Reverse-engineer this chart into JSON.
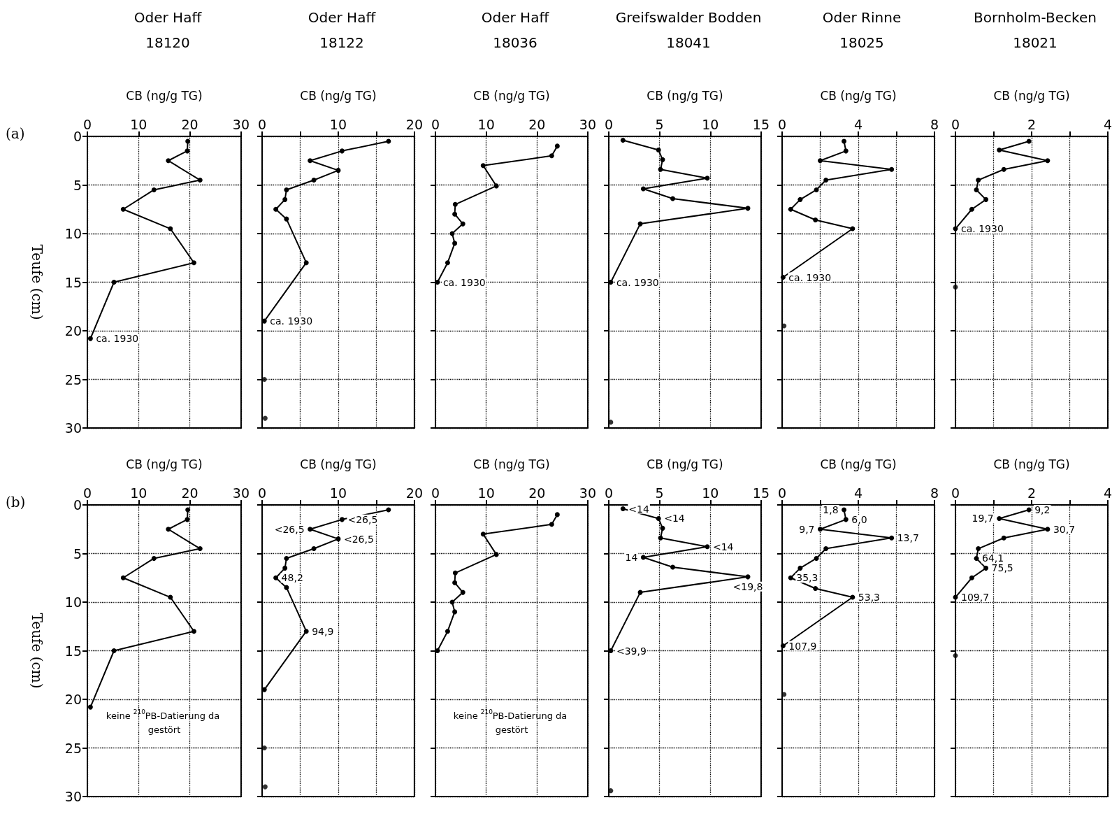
{
  "chart_data": [
    {
      "type": "line",
      "title": "Oder Haff",
      "subtitle": "18120",
      "xlabel": "CB (ng/g TG)",
      "ylabel": "Teufe (cm)",
      "xlim": [
        0,
        30
      ],
      "xticks": [
        0,
        10,
        20,
        30
      ],
      "ylim": [
        30,
        0
      ],
      "yticks": [
        0,
        5,
        10,
        15,
        20,
        25,
        30
      ],
      "grid": true,
      "marker": "circle",
      "line_style": "solid",
      "series": [
        {
          "color": "#000000",
          "x": [
            19.6,
            19.5,
            15.8,
            22,
            13,
            7,
            16.2,
            20.8,
            5.2,
            0.6
          ],
          "values": [
            0.5,
            1.5,
            2.5,
            4.5,
            5.5,
            7.5,
            9.5,
            13,
            15,
            20.8
          ]
        }
      ],
      "annotations": [
        "(a)",
        {
          "text": "ca. 1930",
          "x": 0.6,
          "y": 20.8
        }
      ]
    },
    {
      "type": "line",
      "title": "Oder Haff",
      "subtitle": "18122",
      "xlabel": "CB (ng/g TG)",
      "xlim": [
        0,
        20
      ],
      "xticks": [
        0,
        {
          "value": 5,
          "label": null
        },
        10,
        {
          "value": 15,
          "label": null
        },
        20
      ],
      "ylim": [
        30,
        0
      ],
      "yticks": [
        0,
        5,
        10,
        15,
        20,
        25,
        30
      ],
      "grid": true,
      "marker": "circle",
      "line_style": "solid",
      "tick_labels": "x",
      "series": [
        {
          "color": "#000000",
          "x": [
            16.6,
            10.5,
            6.3,
            10,
            6.8,
            3.2,
            3,
            1.8,
            3.2,
            5.8,
            0.3
          ],
          "values": [
            0.5,
            1.5,
            2.5,
            3.5,
            4.5,
            5.5,
            6.5,
            7.5,
            8.5,
            13,
            19
          ]
        },
        {
          "type": "scatter",
          "color": "#000000",
          "x": [
            0.3,
            0.4
          ],
          "values": [
            25,
            29
          ]
        }
      ],
      "annotations": [
        {
          "text": "ca. 1930",
          "x": 0.3,
          "y": 19
        }
      ]
    },
    {
      "type": "line",
      "title": "Oder Haff",
      "subtitle": "18036",
      "xlabel": "CB (ng/g TG)",
      "xlim": [
        0,
        30
      ],
      "xticks": [
        0,
        10,
        20,
        30
      ],
      "ylim": [
        30,
        0
      ],
      "yticks": [
        0,
        5,
        10,
        15,
        20,
        25,
        30
      ],
      "grid": true,
      "marker": "circle",
      "line_style": "solid",
      "tick_labels": "x",
      "series": [
        {
          "color": "#000000",
          "x": [
            24,
            22.9,
            9.4,
            12,
            3.9,
            3.8,
            5.4,
            3.3,
            3.8,
            2.4,
            0.4
          ],
          "values": [
            1,
            2,
            3,
            5.1,
            7,
            8,
            9,
            10,
            11,
            13,
            15
          ]
        }
      ],
      "annotations": [
        {
          "text": "ca. 1930",
          "x": 0.4,
          "y": 15
        }
      ]
    },
    {
      "type": "line",
      "title": "Greifswalder Bodden",
      "subtitle": "18041",
      "xlabel": "CB (ng/g TG)",
      "xlim": [
        0,
        15
      ],
      "xticks": [
        0,
        5,
        10,
        15
      ],
      "ylim": [
        30,
        0
      ],
      "yticks": [
        0,
        5,
        10,
        15,
        20,
        25,
        30
      ],
      "grid": true,
      "marker": "circle",
      "line_style": "solid",
      "tick_labels": "x",
      "series": [
        {
          "color": "#000000",
          "x": [
            1.4,
            4.9,
            5.3,
            5.1,
            9.7,
            3.4,
            6.3,
            13.7,
            3.1,
            0.2
          ],
          "values": [
            0.4,
            1.4,
            2.4,
            3.4,
            4.3,
            5.4,
            6.4,
            7.4,
            9,
            15
          ]
        },
        {
          "type": "scatter",
          "color": "#000000",
          "x": [
            0.2
          ],
          "values": [
            29.4
          ]
        }
      ],
      "annotations": [
        {
          "text": "ca. 1930",
          "x": 0.2,
          "y": 15
        }
      ]
    },
    {
      "type": "line",
      "title": "Oder Rinne",
      "subtitle": "18025",
      "xlabel": "CB (ng/g TG)",
      "xlim": [
        0,
        8
      ],
      "xticks": [
        0,
        {
          "value": 2,
          "label": null
        },
        4,
        {
          "value": 6,
          "label": null
        },
        8
      ],
      "ylim": [
        30,
        0
      ],
      "yticks": [
        0,
        5,
        10,
        15,
        20,
        25,
        30
      ],
      "grid": true,
      "marker": "circle",
      "line_style": "solid",
      "tick_labels": "x",
      "series": [
        {
          "color": "#000000",
          "x": [
            3.25,
            3.35,
            2,
            5.75,
            2.3,
            1.8,
            0.95,
            0.45,
            1.75,
            3.7,
            0.05
          ],
          "values": [
            0.5,
            1.5,
            2.5,
            3.4,
            4.5,
            5.5,
            6.5,
            7.5,
            8.6,
            9.5,
            14.5
          ]
        },
        {
          "type": "scatter",
          "color": "#000000",
          "x": [
            0.1
          ],
          "values": [
            19.5
          ]
        }
      ],
      "annotations": [
        {
          "text": "ca. 1930",
          "x": 0.05,
          "y": 14.5
        }
      ]
    },
    {
      "type": "line",
      "title": "Bornholm-Becken",
      "subtitle": "18021",
      "xlabel": "CB (ng/g TG)",
      "xlim": [
        0,
        4
      ],
      "xticks": [
        0,
        {
          "value": 1,
          "label": null
        },
        2,
        {
          "value": 3,
          "label": null
        },
        4
      ],
      "ylim": [
        30,
        0
      ],
      "yticks": [
        0,
        5,
        10,
        15,
        20,
        25,
        30
      ],
      "grid": true,
      "marker": "circle",
      "line_style": "solid",
      "tick_labels": "x",
      "series": [
        {
          "color": "#000000",
          "x": [
            1.93,
            1.15,
            2.42,
            1.27,
            0.6,
            0.55,
            0.8,
            0.43,
            0
          ],
          "values": [
            0.5,
            1.4,
            2.5,
            3.4,
            4.5,
            5.5,
            6.5,
            7.5,
            9.5
          ]
        },
        {
          "type": "scatter",
          "color": "#000000",
          "x": [
            0
          ],
          "values": [
            15.5
          ]
        }
      ],
      "annotations": [
        {
          "text": "ca. 1930",
          "x": 0,
          "y": 9.5
        }
      ]
    },
    {
      "type": "line",
      "xlabel": "CB (ng/g TG)",
      "ylabel": "Teufe (cm)",
      "xlim": [
        0,
        30
      ],
      "xticks": [
        0,
        10,
        20,
        30
      ],
      "ylim": [
        30,
        0
      ],
      "yticks": [
        0,
        5,
        10,
        15,
        20,
        25,
        30
      ],
      "grid": true,
      "marker": "circle",
      "line_style": "solid",
      "series": [
        {
          "color": "#000000",
          "x": [
            19.6,
            19.5,
            15.8,
            22,
            13,
            7,
            16.2,
            20.8,
            5.2,
            0.6
          ],
          "values": [
            0.5,
            1.5,
            2.5,
            4.5,
            5.5,
            7.5,
            9.5,
            13,
            15,
            20.8
          ]
        }
      ],
      "annotations": [
        "(b)",
        "keine $^{210}$PB-Datierung da gestört"
      ]
    },
    {
      "type": "line",
      "xlabel": "CB (ng/g TG)",
      "xlim": [
        0,
        20
      ],
      "xticks": [
        0,
        {
          "value": 5,
          "label": null
        },
        10,
        {
          "value": 15,
          "label": null
        },
        20
      ],
      "ylim": [
        30,
        0
      ],
      "yticks": [
        0,
        5,
        10,
        15,
        20,
        25,
        30
      ],
      "grid": true,
      "marker": "circle",
      "line_style": "solid",
      "tick_labels": "x",
      "series": [
        {
          "color": "#000000",
          "x": [
            16.6,
            10.5,
            6.3,
            10,
            6.8,
            3.2,
            3,
            1.8,
            3.2,
            5.8,
            0.3
          ],
          "values": [
            0.5,
            1.5,
            2.5,
            3.5,
            4.5,
            5.5,
            6.5,
            7.5,
            8.5,
            13,
            19
          ]
        },
        {
          "type": "scatter",
          "color": "#000000",
          "x": [
            0.3,
            0.4
          ],
          "values": [
            25,
            29
          ]
        }
      ],
      "annotations": [
        {
          "text": "<26,5",
          "x": 6.3,
          "y": 2.5
        },
        {
          "text": "<26,5",
          "x": 10.5,
          "y": 1.5
        },
        {
          "text": "<26,5",
          "x": 10,
          "y": 3.5
        },
        {
          "text": "48,2",
          "x": 1.8,
          "y": 7.5
        },
        {
          "text": "94,9",
          "x": 5.8,
          "y": 13
        }
      ]
    },
    {
      "type": "line",
      "xlabel": "CB (ng/g TG)",
      "xlim": [
        0,
        30
      ],
      "xticks": [
        0,
        10,
        20,
        30
      ],
      "ylim": [
        30,
        0
      ],
      "yticks": [
        0,
        5,
        10,
        15,
        20,
        25,
        30
      ],
      "grid": true,
      "marker": "circle",
      "line_style": "solid",
      "tick_labels": "x",
      "series": [
        {
          "color": "#000000",
          "x": [
            24,
            22.9,
            9.4,
            12,
            3.9,
            3.8,
            5.4,
            3.3,
            3.8,
            2.4,
            0.4
          ],
          "values": [
            1,
            2,
            3,
            5.1,
            7,
            8,
            9,
            10,
            11,
            13,
            15
          ]
        }
      ],
      "annotations": [
        "keine $^{210}$PB-Datierung da gestört"
      ]
    },
    {
      "type": "line",
      "xlabel": "CB (ng/g TG)",
      "xlim": [
        0,
        15
      ],
      "xticks": [
        0,
        5,
        10,
        15
      ],
      "ylim": [
        30,
        0
      ],
      "yticks": [
        0,
        5,
        10,
        15,
        20,
        25,
        30
      ],
      "grid": true,
      "marker": "circle",
      "line_style": "solid",
      "tick_labels": "x",
      "series": [
        {
          "color": "#000000",
          "x": [
            1.4,
            4.9,
            5.3,
            5.1,
            9.7,
            3.4,
            6.3,
            13.7,
            3.1,
            0.2
          ],
          "values": [
            0.4,
            1.4,
            2.4,
            3.4,
            4.3,
            5.4,
            6.4,
            7.4,
            9,
            15
          ]
        },
        {
          "type": "scatter",
          "color": "#000000",
          "x": [
            0.2
          ],
          "values": [
            29.4
          ]
        }
      ],
      "annotations": [
        {
          "text": "<14",
          "x": 1.4,
          "y": 0.4
        },
        {
          "text": "<14",
          "x": 4.9,
          "y": 1.4
        },
        {
          "text": "<14",
          "x": 9.7,
          "y": 4.3
        },
        {
          "text": "14",
          "x": 3.4,
          "y": 5.4
        },
        {
          "text": "<19,8",
          "x": 13.7,
          "y": 7.4
        },
        {
          "text": "<39,9",
          "x": 0.2,
          "y": 15
        }
      ]
    },
    {
      "type": "line",
      "xlabel": "CB (ng/g TG)",
      "xlim": [
        0,
        8
      ],
      "xticks": [
        0,
        {
          "value": 2,
          "label": null
        },
        4,
        {
          "value": 6,
          "label": null
        },
        8
      ],
      "ylim": [
        30,
        0
      ],
      "yticks": [
        0,
        5,
        10,
        15,
        20,
        25,
        30
      ],
      "grid": true,
      "marker": "circle",
      "line_style": "solid",
      "tick_labels": "x",
      "series": [
        {
          "color": "#000000",
          "x": [
            3.25,
            3.35,
            2,
            5.75,
            2.3,
            1.8,
            0.95,
            0.45,
            1.75,
            3.7,
            0.05
          ],
          "values": [
            0.5,
            1.5,
            2.5,
            3.4,
            4.5,
            5.5,
            6.5,
            7.5,
            8.6,
            9.5,
            14.5
          ]
        },
        {
          "type": "scatter",
          "color": "#000000",
          "x": [
            0.1
          ],
          "values": [
            19.5
          ]
        }
      ],
      "annotations": [
        {
          "text": "1,8",
          "x": 3.25,
          "y": 0.5
        },
        {
          "text": "6,0",
          "x": 3.35,
          "y": 1.5
        },
        {
          "text": "9,7",
          "x": 2,
          "y": 2.5
        },
        {
          "text": "13,7",
          "x": 5.75,
          "y": 3.4
        },
        {
          "text": "35,3",
          "x": 0.45,
          "y": 7.5
        },
        {
          "text": "53,3",
          "x": 3.7,
          "y": 9.5
        },
        {
          "text": "107,9",
          "x": 0.05,
          "y": 14.5
        }
      ]
    },
    {
      "type": "line",
      "xlabel": "CB (ng/g TG)",
      "xlim": [
        0,
        4
      ],
      "xticks": [
        0,
        {
          "value": 1,
          "label": null
        },
        2,
        {
          "value": 3,
          "label": null
        },
        4
      ],
      "ylim": [
        30,
        0
      ],
      "yticks": [
        0,
        5,
        10,
        15,
        20,
        25,
        30
      ],
      "grid": true,
      "marker": "circle",
      "line_style": "solid",
      "tick_labels": "x",
      "series": [
        {
          "color": "#000000",
          "x": [
            1.93,
            1.15,
            2.42,
            1.27,
            0.6,
            0.55,
            0.8,
            0.43,
            0
          ],
          "values": [
            0.5,
            1.4,
            2.5,
            3.4,
            4.5,
            5.5,
            6.5,
            7.5,
            9.5
          ]
        },
        {
          "type": "scatter",
          "color": "#000000",
          "x": [
            0
          ],
          "values": [
            15.5
          ]
        }
      ],
      "annotations": [
        {
          "text": "9,2",
          "x": 1.93,
          "y": 0.5
        },
        {
          "text": "19,7",
          "x": 1.15,
          "y": 1.4
        },
        {
          "text": "30,7",
          "x": 2.42,
          "y": 2.5
        },
        {
          "text": "64,1",
          "x": 0.55,
          "y": 5.5
        },
        {
          "text": "75,5",
          "x": 0.8,
          "y": 6.5
        },
        {
          "text": "109,7",
          "x": 0,
          "y": 9.5
        }
      ]
    }
  ]
}
